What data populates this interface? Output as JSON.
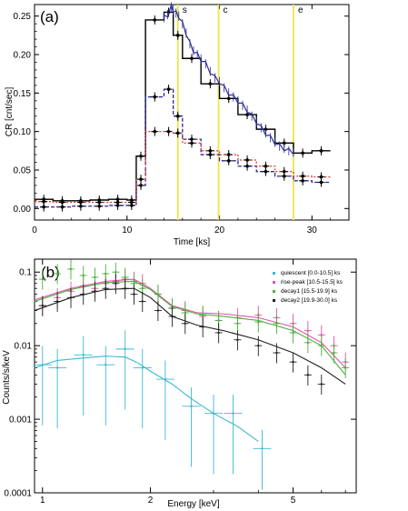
{
  "chart_data": [
    {
      "type": "line",
      "panel_label": "(a)",
      "xlabel": "Time [ks]",
      "ylabel": "CR [cnt/sec]",
      "xlim": [
        0,
        34
      ],
      "ylim": [
        -0.015,
        0.265
      ],
      "xticks": [
        0,
        10,
        20,
        30
      ],
      "yticks": [
        0.0,
        0.05,
        0.1,
        0.15,
        0.2,
        0.25
      ],
      "ytick_labels": [
        "0.00",
        "0.05",
        "0.10",
        "0.15",
        "0.20",
        "0.25"
      ],
      "vlines": [
        {
          "x": 15.5,
          "label": "s"
        },
        {
          "x": 19.9,
          "label": "c"
        },
        {
          "x": 28.0,
          "label": "e"
        }
      ],
      "series": [
        {
          "color": "#000000",
          "style": "solid",
          "edges": [
            0,
            2,
            4,
            6,
            8,
            10,
            11,
            12,
            14,
            15,
            16,
            18,
            20,
            22,
            24,
            26,
            28,
            30,
            32
          ],
          "values": [
            0.012,
            0.01,
            0.01,
            0.011,
            0.012,
            0.011,
            0.068,
            0.245,
            0.255,
            0.225,
            0.195,
            0.162,
            0.143,
            0.122,
            0.103,
            0.085,
            0.072,
            0.075
          ],
          "points": [
            [
              1,
              0.012
            ],
            [
              3,
              0.01
            ],
            [
              5,
              0.01
            ],
            [
              7,
              0.011
            ],
            [
              9,
              0.012
            ],
            [
              10.5,
              0.011
            ],
            [
              11.5,
              0.068
            ],
            [
              13,
              0.245
            ],
            [
              14.5,
              0.255
            ],
            [
              15.5,
              0.225
            ],
            [
              17,
              0.195
            ],
            [
              19,
              0.162
            ],
            [
              21,
              0.143
            ],
            [
              23,
              0.122
            ],
            [
              25,
              0.103
            ],
            [
              27,
              0.085
            ],
            [
              29,
              0.072
            ],
            [
              31,
              0.075
            ]
          ]
        },
        {
          "color": "#2a2a9a",
          "style": "dashed",
          "edges": [
            0,
            2,
            4,
            6,
            8,
            10,
            11,
            12,
            14,
            15,
            16,
            18,
            20,
            22,
            24,
            26,
            28,
            30,
            32
          ],
          "values": [
            0.002,
            0.002,
            0.003,
            0.003,
            0.004,
            0.004,
            0.03,
            0.145,
            0.155,
            0.12,
            0.09,
            0.07,
            0.062,
            0.055,
            0.048,
            0.042,
            0.036,
            0.034
          ],
          "points": [
            [
              1,
              0.002
            ],
            [
              3,
              0.002
            ],
            [
              5,
              0.003
            ],
            [
              7,
              0.003
            ],
            [
              9,
              0.004
            ],
            [
              10.5,
              0.004
            ],
            [
              11.5,
              0.03
            ],
            [
              13,
              0.145
            ],
            [
              14.5,
              0.155
            ],
            [
              15.5,
              0.12
            ],
            [
              17,
              0.09
            ],
            [
              19,
              0.07
            ],
            [
              21,
              0.062
            ],
            [
              23,
              0.055
            ],
            [
              25,
              0.048
            ],
            [
              27,
              0.042
            ],
            [
              29,
              0.036
            ],
            [
              31,
              0.034
            ]
          ]
        },
        {
          "color": "#e03a2a",
          "style": "dotted",
          "edges": [
            0,
            2,
            4,
            6,
            8,
            10,
            11,
            12,
            14,
            15,
            16,
            18,
            20,
            22,
            24,
            26,
            28,
            30,
            32
          ],
          "values": [
            0.009,
            0.008,
            0.008,
            0.008,
            0.008,
            0.008,
            0.038,
            0.1,
            0.1,
            0.098,
            0.085,
            0.075,
            0.07,
            0.063,
            0.055,
            0.048,
            0.042,
            0.041
          ],
          "points": [
            [
              1,
              0.009
            ],
            [
              3,
              0.008
            ],
            [
              5,
              0.008
            ],
            [
              7,
              0.008
            ],
            [
              9,
              0.008
            ],
            [
              10.5,
              0.008
            ],
            [
              11.5,
              0.038
            ],
            [
              13,
              0.1
            ],
            [
              14.5,
              0.1
            ],
            [
              15.5,
              0.098
            ],
            [
              17,
              0.085
            ],
            [
              19,
              0.075
            ],
            [
              21,
              0.07
            ],
            [
              23,
              0.063
            ],
            [
              25,
              0.055
            ],
            [
              27,
              0.048
            ],
            [
              29,
              0.042
            ],
            [
              31,
              0.041
            ]
          ]
        },
        {
          "color": "#2c2c96",
          "style": "noisy",
          "x": [
            14.0,
            14.4,
            14.8,
            15.0,
            15.3,
            15.6,
            16.0,
            16.4,
            16.8,
            17.2,
            17.6,
            18.0,
            18.5,
            19.0,
            19.5,
            20.0,
            20.5,
            21.0,
            21.5,
            22.0,
            22.5,
            23.0,
            23.5,
            24.0,
            24.5,
            25.0,
            25.5,
            26.0,
            26.5,
            27.0,
            27.5,
            28.0
          ],
          "y": [
            0.248,
            0.252,
            0.262,
            0.258,
            0.254,
            0.25,
            0.24,
            0.228,
            0.214,
            0.205,
            0.2,
            0.194,
            0.188,
            0.178,
            0.17,
            0.165,
            0.157,
            0.15,
            0.145,
            0.14,
            0.134,
            0.128,
            0.12,
            0.113,
            0.105,
            0.098,
            0.092,
            0.086,
            0.081,
            0.078,
            0.075,
            0.073
          ]
        }
      ]
    },
    {
      "type": "scatter",
      "panel_label": "(b)",
      "xlabel": "Energy [keV]",
      "ylabel": "Counts/s/keV",
      "xscale": "log",
      "yscale": "log",
      "xlim": [
        0.95,
        7.5
      ],
      "ylim": [
        0.0001,
        0.15
      ],
      "xticks": [
        1,
        2,
        5
      ],
      "yticks": [
        0.1,
        0.01,
        0.001,
        0.0001
      ],
      "ytick_labels": [
        "0.1",
        "0.01",
        "0.001",
        "0.0001"
      ],
      "legend_position": "top-right",
      "series": [
        {
          "name": "quiescent [0.0-10.5] ks",
          "color": "#3cb8d4",
          "x": [
            1.0,
            1.1,
            1.3,
            1.5,
            1.7,
            1.9,
            2.2,
            2.6,
            3.0,
            3.4,
            4.1
          ],
          "y": [
            0.0055,
            0.005,
            0.0075,
            0.0055,
            0.009,
            0.005,
            0.0035,
            0.0015,
            0.0012,
            0.0012,
            0.0004
          ],
          "model_x": [
            0.95,
            1.1,
            1.3,
            1.5,
            1.7,
            1.85,
            2.0,
            2.3,
            2.6,
            3.0,
            3.5,
            4.0
          ],
          "model_y": [
            0.005,
            0.0063,
            0.0068,
            0.0072,
            0.007,
            0.0058,
            0.0045,
            0.003,
            0.0019,
            0.0012,
            0.0008,
            0.0005
          ]
        },
        {
          "name": "rise-peak [10.5-15.5] ks",
          "color": "#e052a8",
          "x": [
            1.0,
            1.1,
            1.2,
            1.3,
            1.4,
            1.5,
            1.6,
            1.7,
            1.8,
            1.9,
            2.1,
            2.3,
            2.5,
            2.8,
            3.1,
            3.5,
            4.0,
            4.5,
            5.0,
            5.5,
            6.0,
            6.5,
            7.0
          ],
          "y": [
            0.035,
            0.045,
            0.055,
            0.065,
            0.06,
            0.07,
            0.075,
            0.08,
            0.075,
            0.07,
            0.05,
            0.033,
            0.03,
            0.025,
            0.022,
            0.024,
            0.026,
            0.024,
            0.02,
            0.016,
            0.014,
            0.01,
            0.006
          ],
          "model_x": [
            0.95,
            1.2,
            1.5,
            1.8,
            2.0,
            2.3,
            2.7,
            3.2,
            4.0,
            5.0,
            6.0,
            7.0
          ],
          "model_y": [
            0.042,
            0.06,
            0.075,
            0.08,
            0.06,
            0.035,
            0.028,
            0.027,
            0.024,
            0.018,
            0.011,
            0.005
          ]
        },
        {
          "name": "decay1 [15.5-19.9] ks",
          "color": "#4caf3e",
          "x": [
            1.0,
            1.1,
            1.2,
            1.3,
            1.4,
            1.5,
            1.6,
            1.7,
            1.8,
            1.9,
            2.1,
            2.3,
            2.5,
            2.8,
            3.1,
            3.5,
            4.0,
            4.5,
            5.0,
            5.5,
            6.0,
            6.5,
            7.0
          ],
          "y": [
            0.08,
            0.095,
            0.11,
            0.09,
            0.085,
            0.095,
            0.1,
            0.085,
            0.07,
            0.06,
            0.05,
            0.032,
            0.028,
            0.026,
            0.022,
            0.02,
            0.021,
            0.02,
            0.015,
            0.011,
            0.01,
            0.008,
            0.005
          ],
          "model_x": [
            0.95,
            1.2,
            1.5,
            1.8,
            2.0,
            2.3,
            2.7,
            3.2,
            4.0,
            5.0,
            6.0,
            7.0
          ],
          "model_y": [
            0.04,
            0.058,
            0.072,
            0.075,
            0.058,
            0.034,
            0.027,
            0.025,
            0.022,
            0.016,
            0.01,
            0.004
          ]
        },
        {
          "name": "decay2 [19.9-30.0] ks",
          "color": "#222222",
          "x": [
            1.0,
            1.1,
            1.2,
            1.3,
            1.4,
            1.5,
            1.6,
            1.7,
            1.8,
            1.9,
            2.1,
            2.3,
            2.5,
            2.8,
            3.1,
            3.5,
            4.0,
            4.5,
            5.0,
            5.5,
            6.0
          ],
          "y": [
            0.035,
            0.04,
            0.045,
            0.05,
            0.055,
            0.06,
            0.07,
            0.06,
            0.05,
            0.04,
            0.03,
            0.025,
            0.02,
            0.018,
            0.015,
            0.012,
            0.01,
            0.008,
            0.006,
            0.004,
            0.003
          ],
          "model_x": [
            0.95,
            1.2,
            1.5,
            1.8,
            2.0,
            2.3,
            2.7,
            3.2,
            4.0,
            5.0,
            6.0,
            7.0
          ],
          "model_y": [
            0.03,
            0.045,
            0.058,
            0.06,
            0.045,
            0.025,
            0.019,
            0.016,
            0.012,
            0.008,
            0.005,
            0.003
          ]
        }
      ]
    }
  ]
}
